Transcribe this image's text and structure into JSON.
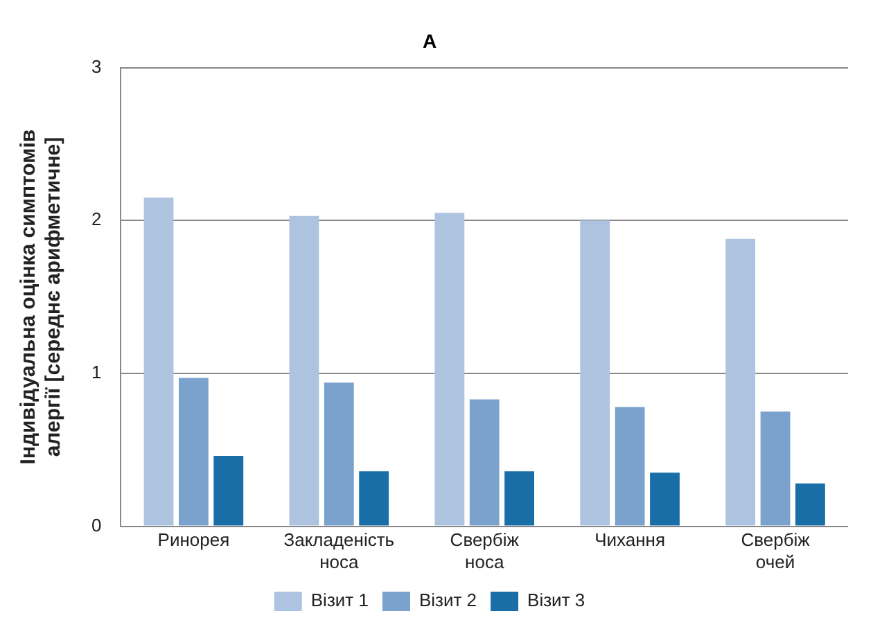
{
  "chart_data": {
    "type": "bar",
    "title": "A",
    "ylabel": "Індивідуальна оцінка симптомів алергії [середнє арифметичне]",
    "categories": [
      "Ринорея",
      "Закладеність носа",
      "Свербіж носа",
      "Чихання",
      "Свербіж очей"
    ],
    "series": [
      {
        "name": "Візит 1",
        "color": "#adc3df",
        "values": [
          2.15,
          2.03,
          2.05,
          2.0,
          1.88
        ]
      },
      {
        "name": "Візит 2",
        "color": "#7aa2cc",
        "values": [
          0.97,
          0.94,
          0.83,
          0.78,
          0.75
        ]
      },
      {
        "name": "Візит 3",
        "color": "#1a6ea8",
        "values": [
          0.46,
          0.36,
          0.36,
          0.35,
          0.28
        ]
      }
    ],
    "ylim": [
      0,
      3
    ],
    "yticks": [
      0,
      1,
      2,
      3
    ],
    "grid": "y",
    "legend": "bottom"
  }
}
